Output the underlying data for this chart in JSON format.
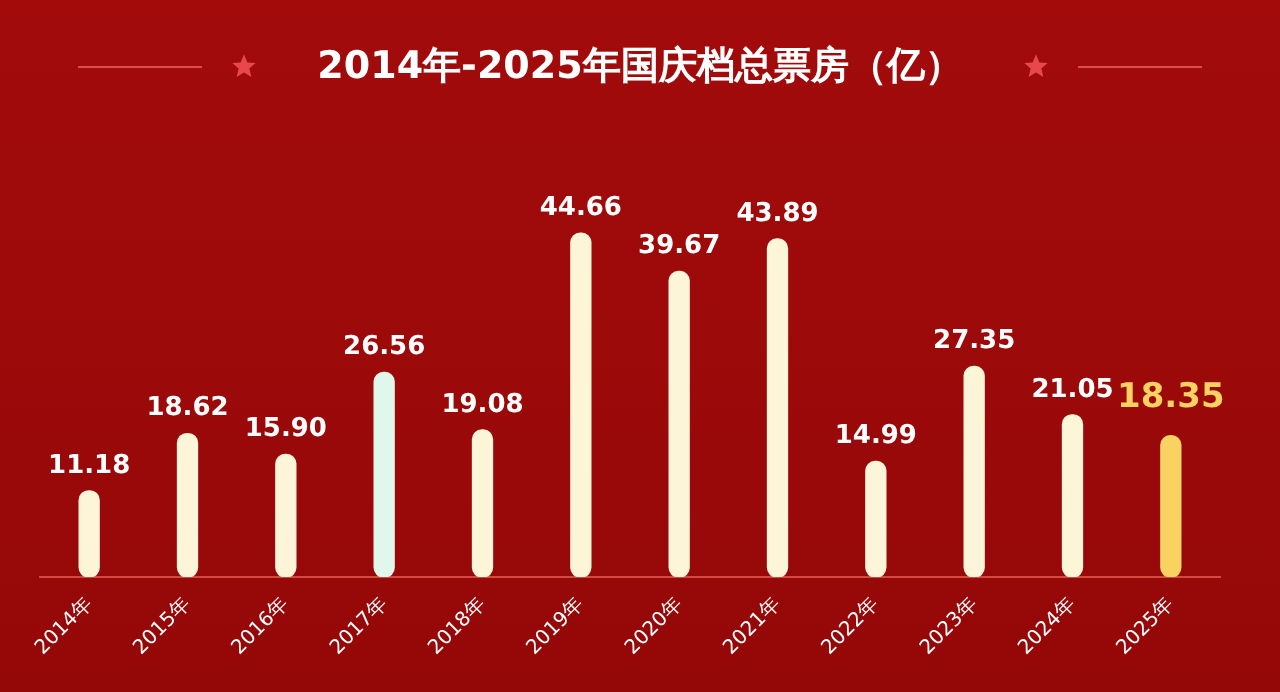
{
  "chart_data": {
    "type": "bar",
    "title": "2014年-2025年国庆档总票房（亿）",
    "categories": [
      "2014年",
      "2015年",
      "2016年",
      "2017年",
      "2018年",
      "2019年",
      "2020年",
      "2021年",
      "2022年",
      "2023年",
      "2024年",
      "2025年"
    ],
    "values": [
      11.18,
      18.62,
      15.9,
      26.56,
      19.08,
      44.66,
      39.67,
      43.89,
      14.99,
      27.35,
      21.05,
      18.35
    ],
    "colors": [
      "#fdf5d8",
      "#fdf5d8",
      "#fdf5d8",
      "#e0f8ec",
      "#fdf5d8",
      "#fdf5d8",
      "#fdf5d8",
      "#fdf5d8",
      "#fdf5d8",
      "#fdf5d8",
      "#fdf5d8",
      "#f9d262"
    ],
    "value_labels": [
      "11.18",
      "18.62",
      "15.90",
      "26.56",
      "19.08",
      "44.66",
      "39.67",
      "43.89",
      "14.99",
      "27.35",
      "21.05",
      "18.35"
    ],
    "legend": false,
    "grid": false
  }
}
